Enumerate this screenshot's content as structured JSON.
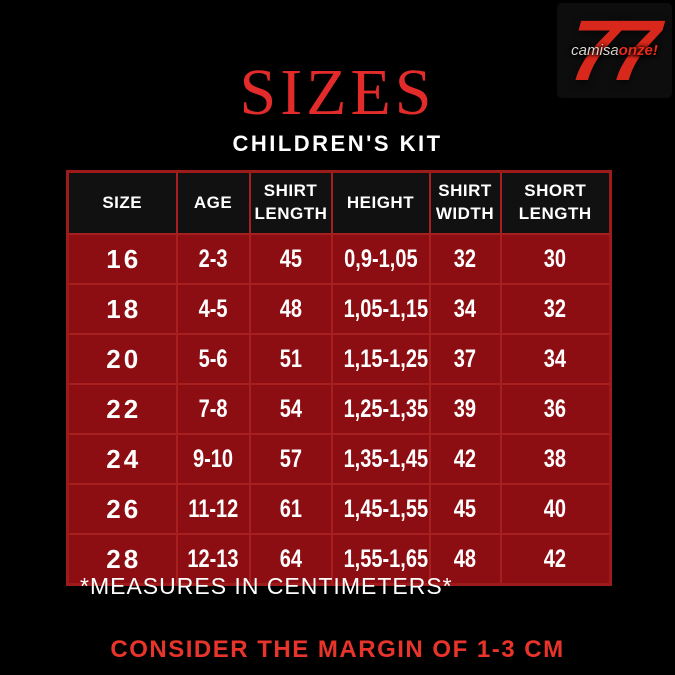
{
  "logo": {
    "numeral": "77",
    "brand_light": "camisa",
    "brand_accent": "onze!"
  },
  "chart_data": {
    "type": "table",
    "title": "SIZES",
    "subtitle": "CHILDREN'S KIT",
    "columns": [
      "SIZE",
      "AGE",
      "SHIRT LENGTH",
      "HEIGHT",
      "SHIRT WIDTH",
      "SHORT LENGTH"
    ],
    "rows": [
      [
        "16",
        "2-3",
        "45",
        "0,9-1,05",
        "32",
        "30"
      ],
      [
        "18",
        "4-5",
        "48",
        "1,05-1,15",
        "34",
        "32"
      ],
      [
        "20",
        "5-6",
        "51",
        "1,15-1,25",
        "37",
        "34"
      ],
      [
        "22",
        "7-8",
        "54",
        "1,25-1,35",
        "39",
        "36"
      ],
      [
        "24",
        "9-10",
        "57",
        "1,35-1,45",
        "42",
        "38"
      ],
      [
        "26",
        "11-12",
        "61",
        "1,45-1,55",
        "45",
        "40"
      ],
      [
        "28",
        "12-13",
        "64",
        "1,55-1,65",
        "48",
        "42"
      ]
    ]
  },
  "footnote": "*MEASURES IN CENTIMETERS*",
  "disclaimer": "CONSIDER THE MARGIN OF 1-3 CM",
  "colors": {
    "background": "#000000",
    "title_red": "#E32B2B",
    "cell_red": "#8D0E12",
    "grid_red": "#A5201E",
    "header_black": "#111111",
    "text_white": "#FFFFFF",
    "disclaimer_red": "#E8342B",
    "logo_red": "#D8271B"
  }
}
